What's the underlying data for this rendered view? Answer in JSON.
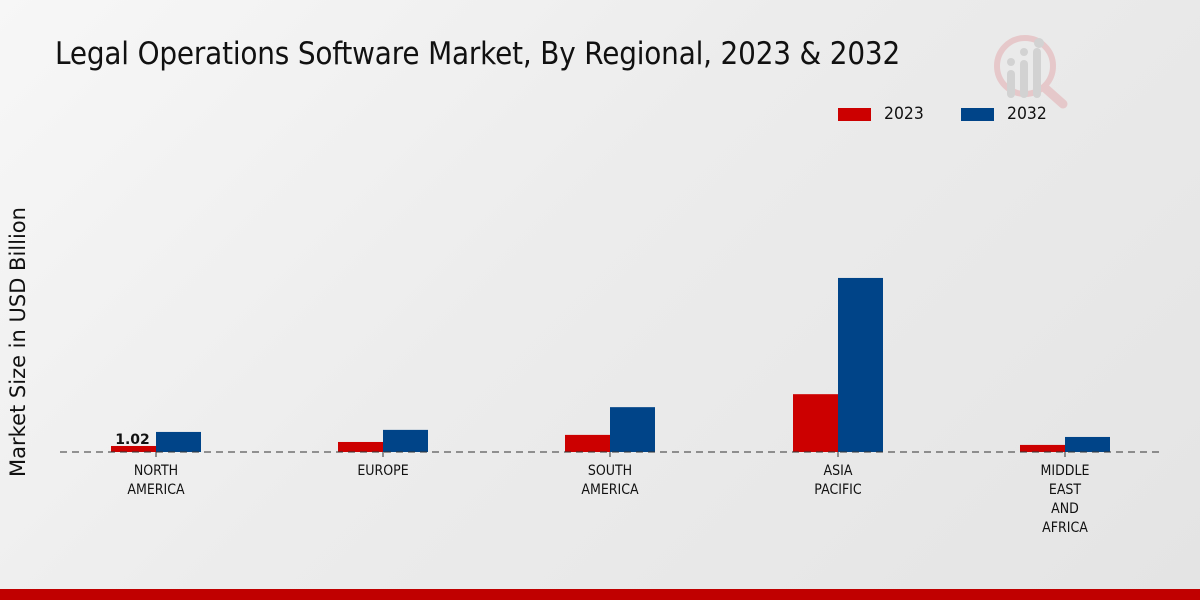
{
  "chart_data": {
    "type": "bar",
    "title": "Legal Operations Software Market, By Regional, 2023 & 2032",
    "xlabel": "",
    "ylabel": "Market Size in USD Billion",
    "categories": [
      [
        "NORTH",
        "AMERICA"
      ],
      [
        "EUROPE"
      ],
      [
        "SOUTH",
        "AMERICA"
      ],
      [
        "ASIA",
        "PACIFIC"
      ],
      [
        "MIDDLE",
        "EAST",
        "AND",
        "AFRICA"
      ]
    ],
    "series": [
      {
        "name": "2023",
        "color": "#cc0000",
        "values": [
          1.02,
          1.7,
          2.9,
          9.8,
          1.2
        ]
      },
      {
        "name": "2032",
        "color": "#004488",
        "values": [
          3.4,
          3.75,
          7.6,
          29.5,
          2.55
        ]
      }
    ],
    "data_labels": [
      {
        "series": "2023",
        "category_index": 0,
        "text": "1.02"
      }
    ],
    "ylim": [
      0,
      35
    ],
    "grid": false,
    "baseline_style": "dashed",
    "legend_position": "top-right"
  },
  "legend": {
    "items": [
      {
        "label": "2023",
        "color": "#cc0000"
      },
      {
        "label": "2032",
        "color": "#004488"
      }
    ]
  },
  "brand_bar_color": "#c00000"
}
